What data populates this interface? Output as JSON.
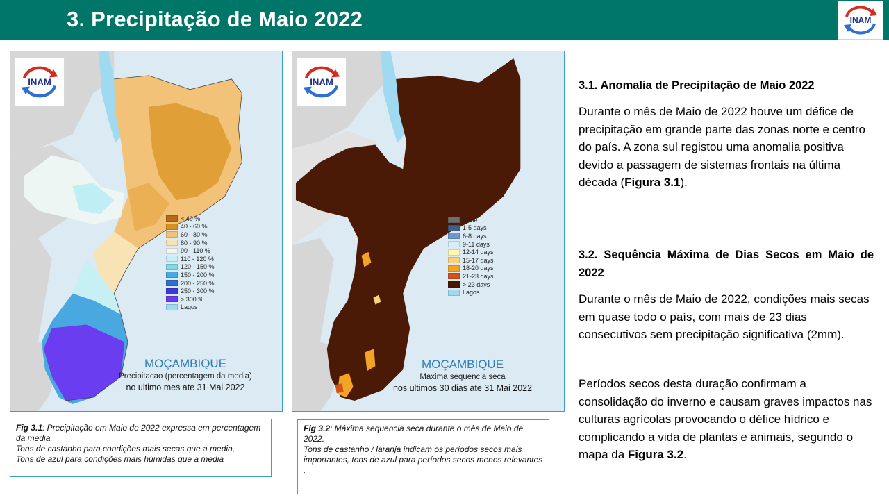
{
  "header": {
    "title": "3. Precipitação de Maio 2022",
    "logo_text": "INAM"
  },
  "map1": {
    "logo_text": "INAM",
    "legend": [
      {
        "label": "< 40 %",
        "color": "#b56a14"
      },
      {
        "label": "40 - 60 %",
        "color": "#d9901c"
      },
      {
        "label": "60 - 80 %",
        "color": "#f1c277"
      },
      {
        "label": "80 - 90 %",
        "color": "#f8e3b5"
      },
      {
        "label": "90 - 110 %",
        "color": "#f4f4f0"
      },
      {
        "label": "110 - 120 %",
        "color": "#c6f0f4"
      },
      {
        "label": "120 - 150 %",
        "color": "#7fd9e8"
      },
      {
        "label": "150 - 200 %",
        "color": "#4aa8e0"
      },
      {
        "label": "200 - 250 %",
        "color": "#2f6fd4"
      },
      {
        "label": "250 - 300 %",
        "color": "#3c3ad6"
      },
      {
        "label": "> 300 %",
        "color": "#6a3df0"
      },
      {
        "label": "Lagos",
        "color": "#9fdaf0"
      }
    ],
    "country": "MOÇAMBIQUE",
    "line1": "Precipitacao (percentagem da media)",
    "line2": "no ultimo mes ate 31 Mai 2022"
  },
  "map2": {
    "logo_text": "INAM",
    "legend": [
      {
        "label": "None",
        "color": "#6e6e6e"
      },
      {
        "label": "1-5 days",
        "color": "#3d5f8c"
      },
      {
        "label": "6-8 days",
        "color": "#6f98cf"
      },
      {
        "label": "9-11 days",
        "color": "#d9ecf7"
      },
      {
        "label": "12-14 days",
        "color": "#fff6b0"
      },
      {
        "label": "15-17 days",
        "color": "#fbd27a"
      },
      {
        "label": "18-20 days",
        "color": "#f3a427"
      },
      {
        "label": "21-23 days",
        "color": "#d1541a"
      },
      {
        "label": "> 23 days",
        "color": "#4a1a06"
      },
      {
        "label": "Lagos",
        "color": "#9fdaf0"
      }
    ],
    "country": "MOÇAMBIQUE",
    "line1": "Maxima sequencia seca",
    "line2": "nos ultimos 30 dias ate 31 Mai 2022"
  },
  "caption1": {
    "label": "Fig 3.1",
    "text1": ":  Precipitação em Maio de 2022  expressa em percentagem da media.",
    "text2": "Tons de castanho para condições mais secas que a media,",
    "text3": "Tons de azul para condições mais húmidas que a media"
  },
  "caption2": {
    "label": "Fig 3.2",
    "text1": ": Máxima sequencia seca durante o mês de Maio de 2022.",
    "text2": "Tons de castanho / laranja indicam os períodos secos mais importantes, tons de azul para períodos secos menos relevantes ."
  },
  "section1": {
    "heading": "3.1. Anomalia de Precipitação de Maio 2022",
    "para_a": "Durante o mês de Maio de 2022 houve um défice de precipitação em grande parte das zonas norte e centro do país. A zona sul registou uma anomalia positiva devido a passagem de sistemas frontais na última década (",
    "para_ref": "Figura 3.1",
    "para_b": ")."
  },
  "section2": {
    "heading": "3.2. Sequência Máxima de Dias Secos em Maio de 2022",
    "para1": "Durante o mês de Maio de  2022, condições mais secas em quase todo o país, com mais de 23 dias consecutivos sem precipitação significativa (2mm).",
    "para2_a": "Períodos secos desta duração confirmam a consolidação do inverno e causam graves impactos nas culturas agrícolas  provocando o défice hídrico e complicando a vida de plantas e animais, segundo o mapa da ",
    "para2_ref": "Figura 3.2",
    "para2_b": "."
  }
}
